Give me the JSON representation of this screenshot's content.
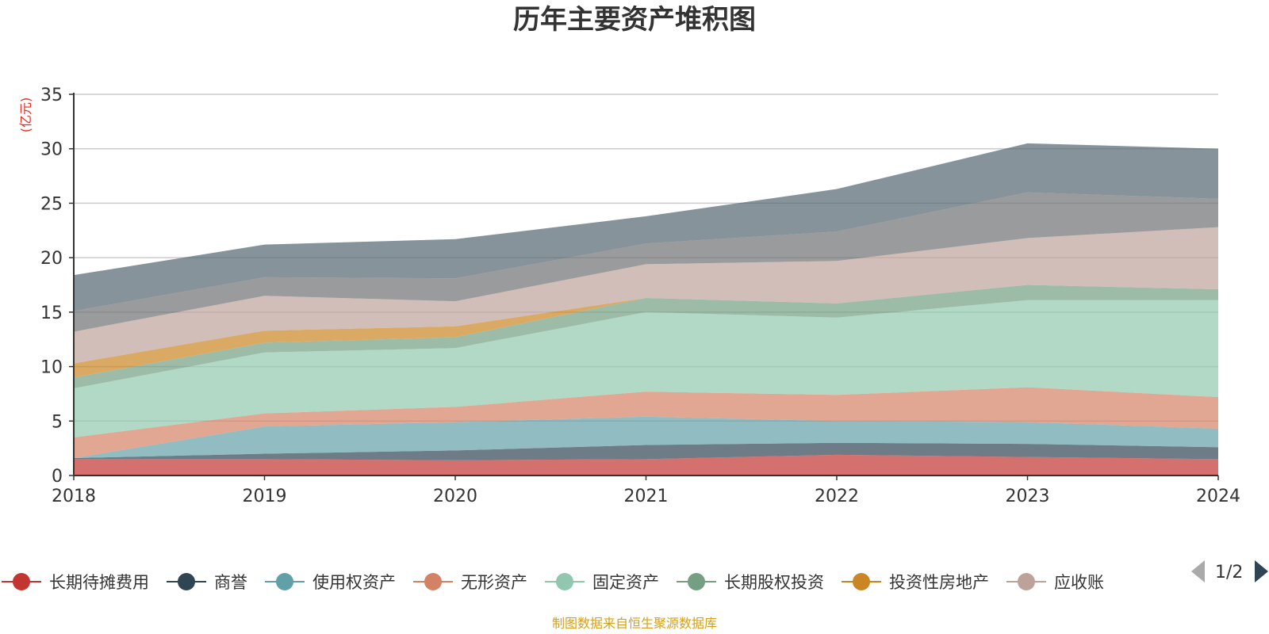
{
  "chart_data": {
    "type": "area",
    "stacked": true,
    "title": "历年主要资产堆积图",
    "unit_label": "(亿元)",
    "source": "制图数据来自恒生聚源数据库",
    "x": [
      "2018",
      "2019",
      "2020",
      "2021",
      "2022",
      "2023",
      "2024"
    ],
    "ylim": [
      0,
      35
    ],
    "yticks": [
      0,
      5,
      10,
      15,
      20,
      25,
      30,
      35
    ],
    "grid": true,
    "legend_position": "bottom",
    "legend_page": "1/2",
    "series": [
      {
        "name": "长期待摊费用",
        "color": "#c23531",
        "values": [
          1.5,
          1.5,
          1.4,
          1.5,
          1.9,
          1.7,
          1.5
        ],
        "legend": true
      },
      {
        "name": "商誉",
        "color": "#2f4554",
        "values": [
          0.1,
          0.5,
          0.9,
          1.3,
          1.1,
          1.2,
          1.1
        ],
        "legend": true
      },
      {
        "name": "使用权资产",
        "color": "#61a0a8",
        "values": [
          0.0,
          2.5,
          2.6,
          2.6,
          2.0,
          2.0,
          1.7
        ],
        "legend": true
      },
      {
        "name": "无形资产",
        "color": "#d48265",
        "values": [
          1.9,
          1.2,
          1.4,
          2.3,
          2.4,
          3.2,
          2.9
        ],
        "legend": true
      },
      {
        "name": "固定资产",
        "color": "#91c7ae",
        "values": [
          4.5,
          5.6,
          5.4,
          7.3,
          7.1,
          8.0,
          8.9
        ],
        "legend": true
      },
      {
        "name": "长期股权投资",
        "color": "#749f83",
        "values": [
          1.0,
          0.9,
          1.0,
          1.3,
          1.3,
          1.4,
          1.0
        ],
        "legend": true
      },
      {
        "name": "投资性房地产",
        "color": "#ca8622",
        "values": [
          1.3,
          1.1,
          1.0,
          0.0,
          0.0,
          0.0,
          0.0
        ],
        "legend": true
      },
      {
        "name": "应收账款",
        "legend_label": "应收账",
        "color": "#bda29a",
        "values": [
          2.9,
          3.2,
          2.3,
          3.1,
          3.9,
          4.3,
          5.7
        ],
        "legend": true
      },
      {
        "name": "",
        "color": "#6e7074",
        "values": [
          1.9,
          1.7,
          2.1,
          1.9,
          2.7,
          4.2,
          2.6
        ],
        "legend": false
      },
      {
        "name": "",
        "color": "#546570",
        "values": [
          3.3,
          3.0,
          3.6,
          2.5,
          3.9,
          4.5,
          4.6
        ],
        "legend": false
      }
    ]
  }
}
